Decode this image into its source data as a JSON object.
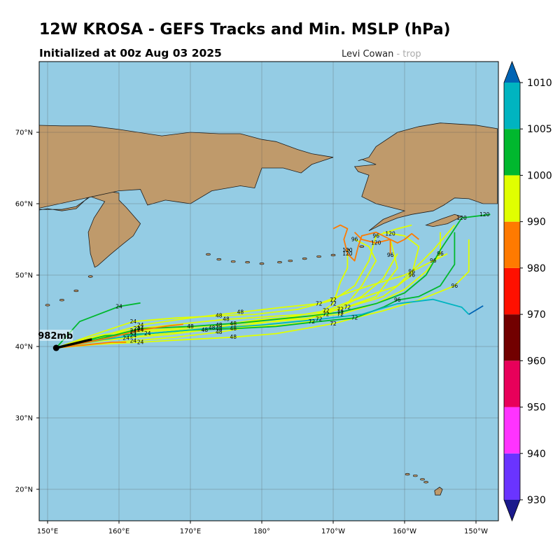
{
  "title": "12W KROSA - GEFS Tracks and Min. MSLP (hPa)",
  "subtitle": "Initialized at 00z Aug 03 2025",
  "credit": {
    "main": "Levi Cowan",
    "faint": "- trop"
  },
  "colors": {
    "ocean": "#94cce4",
    "land": "#bf9a6b",
    "coast": "#1b1b1b"
  },
  "map": {
    "lon_labels": [
      "150°E",
      "160°E",
      "170°E",
      "180°",
      "170°W",
      "160°W",
      "150°W"
    ],
    "lon_values": [
      150,
      160,
      170,
      180,
      190,
      200,
      210
    ],
    "lat_labels": [
      "20°N",
      "30°N",
      "40°N",
      "50°N",
      "60°N",
      "70°N"
    ],
    "lat_values": [
      20,
      30,
      40,
      50,
      60,
      70
    ],
    "current_position": {
      "lon": 151.2,
      "lat": 39.8,
      "label": "982mb"
    }
  },
  "colorbar": {
    "levels": [
      "930",
      "940",
      "950",
      "960",
      "970",
      "980",
      "990",
      "1000",
      "1005",
      "1010"
    ],
    "colors": [
      "#6a34ff",
      "#ff33ff",
      "#ff33ff",
      "#e8005a",
      "#720000",
      "#ff1000",
      "#ff7a00",
      "#e0ff00",
      "#00b82e",
      "#00b4c0",
      "#0064b4"
    ],
    "under_color": "#1a1a8c",
    "over_color": "#0064b4"
  },
  "tracks": [
    {
      "color": "#00b82e",
      "pts": [
        [
          151.2,
          39.8
        ],
        [
          154.5,
          43.5
        ],
        [
          160,
          45.6
        ],
        [
          163,
          46.1
        ]
      ],
      "labels": [
        [
          160,
          45.6,
          "24"
        ]
      ]
    },
    {
      "color": "#e0ff00",
      "pts": [
        [
          151.2,
          39.8
        ],
        [
          156,
          41.5
        ],
        [
          162,
          43.5
        ],
        [
          168,
          44
        ],
        [
          174,
          44.3
        ],
        [
          179,
          44.5
        ],
        [
          185,
          45.2
        ],
        [
          190,
          46.5
        ],
        [
          193,
          48.5
        ],
        [
          195,
          52
        ],
        [
          196,
          55.5
        ],
        [
          199,
          56.5
        ],
        [
          201,
          57
        ]
      ],
      "labels": [
        [
          162,
          43.5,
          "24"
        ],
        [
          174,
          44.3,
          "48"
        ],
        [
          190,
          46.5,
          "72"
        ],
        [
          196,
          55.5,
          "96"
        ]
      ]
    },
    {
      "color": "#e0ff00",
      "pts": [
        [
          151.2,
          39.8
        ],
        [
          157,
          41
        ],
        [
          162.5,
          42.5
        ],
        [
          169,
          43.2
        ],
        [
          175,
          43.8
        ],
        [
          181,
          44.2
        ],
        [
          186,
          44.5
        ],
        [
          192,
          45.5
        ],
        [
          197,
          47
        ],
        [
          201,
          50
        ],
        [
          202,
          54
        ],
        [
          200,
          55.5
        ],
        [
          197,
          56
        ]
      ],
      "labels": [
        [
          162.5,
          42.5,
          "24"
        ],
        [
          175,
          43.8,
          "48"
        ],
        [
          192,
          45.5,
          "72"
        ],
        [
          201,
          50,
          "96"
        ],
        [
          198,
          55.8,
          "120"
        ]
      ]
    },
    {
      "color": "#e0ff00",
      "pts": [
        [
          151.2,
          39.8
        ],
        [
          156,
          41
        ],
        [
          162,
          42.2
        ],
        [
          168,
          42.5
        ],
        [
          174,
          43
        ],
        [
          180,
          43.8
        ],
        [
          186,
          44.2
        ],
        [
          191,
          44.5
        ],
        [
          196,
          46
        ],
        [
          200,
          48
        ],
        [
          203,
          50.5
        ],
        [
          205,
          53
        ],
        [
          205,
          56
        ]
      ],
      "labels": [
        [
          162,
          42.2,
          "24"
        ],
        [
          174,
          43,
          "48"
        ],
        [
          191,
          44.5,
          "72"
        ],
        [
          205,
          53,
          "96"
        ]
      ]
    },
    {
      "color": "#e0ff00",
      "pts": [
        [
          151.2,
          39.8
        ],
        [
          157,
          40.8
        ],
        [
          162,
          41.5
        ],
        [
          168,
          42
        ],
        [
          174,
          42.5
        ],
        [
          180,
          43.3
        ],
        [
          185,
          44
        ],
        [
          191,
          45.2
        ],
        [
          196,
          47
        ],
        [
          199,
          51
        ],
        [
          198,
          55
        ]
      ],
      "labels": [
        [
          162,
          41.5,
          "24"
        ],
        [
          174,
          42.5,
          "48"
        ],
        [
          191,
          45.2,
          "72"
        ],
        [
          198,
          52.8,
          "96"
        ]
      ]
    },
    {
      "color": "#e0ff00",
      "pts": [
        [
          151.2,
          39.8
        ],
        [
          156,
          40.6
        ],
        [
          161,
          41.2
        ],
        [
          167,
          41.7
        ],
        [
          172,
          42.3
        ],
        [
          177,
          43.3
        ],
        [
          183,
          44
        ],
        [
          189,
          45
        ],
        [
          194,
          47
        ],
        [
          197,
          49.5
        ],
        [
          199,
          53
        ]
      ],
      "labels": [
        [
          161,
          41.2,
          "24"
        ],
        [
          172,
          42.3,
          "48"
        ],
        [
          189,
          45,
          "72"
        ]
      ]
    },
    {
      "color": "#e0ff00",
      "pts": [
        [
          151.2,
          39.8
        ],
        [
          156,
          40.3
        ],
        [
          162,
          40.8
        ],
        [
          168,
          41.3
        ],
        [
          174,
          42
        ],
        [
          180,
          43
        ],
        [
          185,
          43.5
        ],
        [
          189,
          44.5
        ],
        [
          192,
          46
        ],
        [
          194,
          48.5
        ],
        [
          196,
          52
        ],
        [
          195,
          54
        ],
        [
          193,
          55
        ]
      ],
      "labels": [
        [
          162,
          40.8,
          "24"
        ],
        [
          174,
          42,
          "48"
        ],
        [
          189,
          44.5,
          "72"
        ],
        [
          193,
          55,
          "96"
        ]
      ]
    },
    {
      "color": "#e0ff00",
      "pts": [
        [
          151.2,
          39.8
        ],
        [
          157,
          41.5
        ],
        [
          163,
          42.5
        ],
        [
          170,
          42.8
        ],
        [
          176,
          43.2
        ],
        [
          182,
          43.5
        ],
        [
          187,
          44
        ],
        [
          190,
          46
        ],
        [
          191,
          49
        ],
        [
          192,
          51
        ],
        [
          192,
          53.5
        ]
      ],
      "labels": [
        [
          163,
          42.5,
          "24"
        ],
        [
          176,
          43.2,
          "48"
        ],
        [
          190,
          46,
          "72"
        ],
        [
          192,
          53.5,
          "120"
        ]
      ]
    },
    {
      "color": "#e0ff00",
      "pts": [
        [
          151.2,
          39.8
        ],
        [
          156,
          41
        ],
        [
          163,
          43
        ],
        [
          170,
          44
        ],
        [
          177,
          44.8
        ],
        [
          183,
          45.5
        ],
        [
          188,
          46
        ],
        [
          192,
          47.5
        ],
        [
          195,
          48.5
        ],
        [
          200,
          50
        ],
        [
          204,
          52
        ],
        [
          206,
          53
        ]
      ],
      "labels": [
        [
          163,
          43,
          "24"
        ],
        [
          177,
          44.8,
          "48"
        ],
        [
          188,
          46,
          "72"
        ],
        [
          204,
          52,
          "96"
        ]
      ]
    },
    {
      "color": "#e0ff00",
      "pts": [
        [
          151.2,
          39.8
        ],
        [
          157,
          40.3
        ],
        [
          163,
          40.6
        ],
        [
          170,
          41
        ],
        [
          176,
          41.3
        ],
        [
          182,
          41.8
        ],
        [
          186,
          42.5
        ],
        [
          190,
          43.2
        ],
        [
          193,
          44
        ],
        [
          197,
          45
        ],
        [
          202,
          46.5
        ],
        [
          207,
          48.5
        ],
        [
          209,
          50.5
        ],
        [
          209,
          55
        ]
      ],
      "labels": [
        [
          163,
          40.6,
          "24"
        ],
        [
          176,
          41.3,
          "48"
        ],
        [
          190,
          43.2,
          "72"
        ],
        [
          207,
          48.5,
          "96"
        ]
      ]
    },
    {
      "color": "#e0ff00",
      "pts": [
        [
          151.2,
          39.8
        ],
        [
          155,
          41
        ],
        [
          162,
          42
        ],
        [
          168,
          42.3
        ],
        [
          173,
          42.6
        ],
        [
          179,
          42.8
        ],
        [
          183,
          43
        ],
        [
          187,
          43.5
        ],
        [
          190,
          45
        ],
        [
          193,
          46.5
        ],
        [
          196,
          47.5
        ],
        [
          199,
          48.5
        ],
        [
          201,
          50.5
        ],
        [
          204,
          53.5
        ],
        [
          207,
          57
        ]
      ],
      "labels": [
        [
          162,
          42,
          "24"
        ],
        [
          173,
          42.6,
          "48"
        ],
        [
          187,
          43.5,
          "72"
        ],
        [
          201,
          50.5,
          "96"
        ]
      ]
    },
    {
      "color": "#00b82e",
      "pts": [
        [
          151.2,
          39.8
        ],
        [
          157,
          41
        ],
        [
          163,
          42.5
        ],
        [
          170,
          42.8
        ],
        [
          177,
          43.3
        ],
        [
          182,
          43.8
        ],
        [
          187,
          44.3
        ],
        [
          191,
          44.8
        ],
        [
          196,
          46
        ],
        [
          200,
          47.5
        ],
        [
          203,
          50
        ],
        [
          205,
          53.5
        ],
        [
          207,
          56.5
        ],
        [
          208,
          58
        ],
        [
          212,
          58.5
        ]
      ],
      "labels": [
        [
          170,
          42.8,
          "48"
        ],
        [
          191,
          44.8,
          "72"
        ],
        [
          208,
          58,
          "120"
        ],
        [
          211.2,
          58.5,
          "120"
        ]
      ]
    },
    {
      "color": "#00b82e",
      "pts": [
        [
          151.2,
          39.8
        ],
        [
          158,
          41.5
        ],
        [
          164,
          41.8
        ],
        [
          170,
          42.3
        ],
        [
          176,
          42.5
        ],
        [
          182,
          42.8
        ],
        [
          188,
          43.5
        ],
        [
          193,
          44
        ],
        [
          197,
          45.5
        ],
        [
          199,
          46.5
        ],
        [
          202,
          47
        ],
        [
          205,
          48.5
        ],
        [
          207,
          51.5
        ],
        [
          207,
          56
        ]
      ],
      "labels": [
        [
          164,
          41.8,
          "24"
        ],
        [
          176,
          42.5,
          "48"
        ],
        [
          193,
          44,
          "72"
        ],
        [
          199,
          46.5,
          "96"
        ]
      ]
    },
    {
      "color": "#00b4c0",
      "pts": [
        [
          151.2,
          39.8
        ],
        [
          158,
          41
        ],
        [
          164,
          41.8
        ],
        [
          172,
          42.5
        ],
        [
          180,
          43
        ],
        [
          188,
          43.8
        ],
        [
          194,
          44.5
        ],
        [
          199,
          46
        ],
        [
          204,
          46.6
        ],
        [
          208,
          45.5
        ],
        [
          209,
          44.5
        ]
      ],
      "labels": [
        [
          188,
          43.8,
          "72"
        ]
      ]
    },
    {
      "color": "#0064b4",
      "pts": [
        [
          209,
          44.5
        ],
        [
          211,
          45.7
        ]
      ],
      "labels": []
    },
    {
      "color": "#ff7a00",
      "pts": [
        [
          151.2,
          39.8
        ],
        [
          155,
          40.5
        ],
        [
          159,
          41.3
        ],
        [
          163,
          42.3
        ],
        [
          167,
          42.9
        ],
        [
          169,
          43.1
        ]
      ],
      "labels": [
        [
          163,
          42.3,
          "24"
        ]
      ]
    },
    {
      "color": "#ff7a00",
      "pts": [
        [
          151.2,
          39.8
        ],
        [
          155,
          40.2
        ],
        [
          159,
          40.6
        ],
        [
          161,
          40.6
        ]
      ],
      "labels": []
    },
    {
      "color": "#ff7a00",
      "pts": [
        [
          193,
          56
        ],
        [
          194,
          55
        ],
        [
          196,
          54.5
        ],
        [
          198,
          55
        ],
        [
          199,
          54.5
        ],
        [
          200,
          55
        ],
        [
          201,
          55.8
        ],
        [
          202,
          55
        ]
      ],
      "labels": [
        [
          196,
          54.5,
          "120"
        ]
      ]
    },
    {
      "color": "#ff7a00",
      "pts": [
        [
          190,
          56.5
        ],
        [
          191,
          57
        ],
        [
          192,
          56.5
        ],
        [
          191.5,
          55
        ],
        [
          192,
          53
        ],
        [
          193,
          52
        ],
        [
          193.5,
          54
        ],
        [
          194,
          55.5
        ],
        [
          196,
          56
        ],
        [
          198,
          55
        ],
        [
          198,
          53
        ]
      ],
      "labels": [
        [
          192,
          53,
          "120"
        ]
      ]
    }
  ]
}
